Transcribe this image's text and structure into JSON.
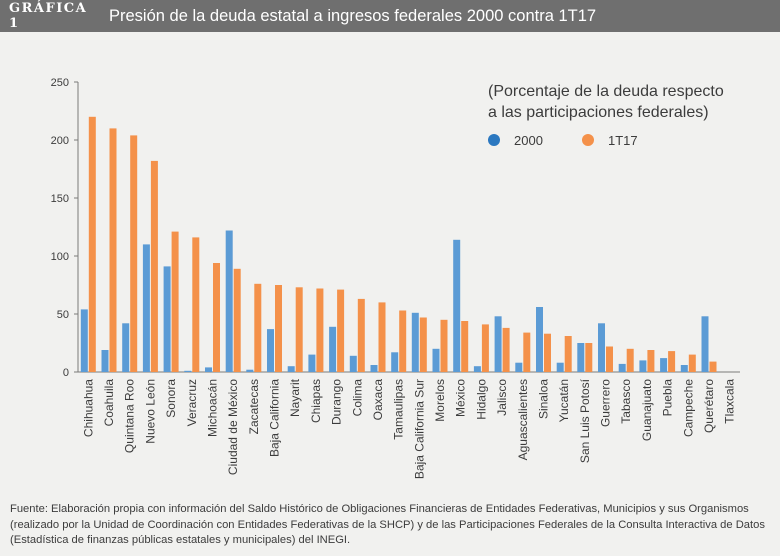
{
  "header": {
    "label": "GRÁFICA 1",
    "title": "Presión de la deuda estatal a ingresos federales 2000 contra 1T17"
  },
  "chart_data": {
    "type": "bar",
    "title": "",
    "xlabel": "",
    "ylabel": "",
    "ylim": [
      0,
      250
    ],
    "yticks": [
      0,
      50,
      100,
      150,
      200,
      250
    ],
    "grid": false,
    "legend_position": "top-right",
    "legend_title": [
      "(Porcentaje de la deuda respecto",
      "a las participaciones federales)"
    ],
    "categories": [
      "Chihuahua",
      "Coahuila",
      "Quintana Roo",
      "Nuevo León",
      "Sonora",
      "Veracruz",
      "Michoacán",
      "Ciudad de México",
      "Zacatecas",
      "Baja California",
      "Nayarit",
      "Chiapas",
      "Durango",
      "Colima",
      "Oaxaca",
      "Tamaulipas",
      "Baja California Sur",
      "Morelos",
      "México",
      "Hidalgo",
      "Jalisco",
      "Aguascalientes",
      "Sinaloa",
      "Yucatán",
      "San Luis Potosí",
      "Guerrero",
      "Tabasco",
      "Guanajuato",
      "Puebla",
      "Campeche",
      "Querétaro",
      "Tlaxcala"
    ],
    "series": [
      {
        "name": "2000",
        "color": "#5b9bd5",
        "legend_color": "#2b78c0",
        "values": [
          54,
          19,
          42,
          110,
          91,
          1,
          4,
          122,
          2,
          37,
          5,
          15,
          39,
          14,
          6,
          17,
          51,
          20,
          114,
          5,
          48,
          8,
          56,
          8,
          25,
          42,
          7,
          10,
          12,
          6,
          48,
          0
        ]
      },
      {
        "name": "1T17",
        "color": "#f4914a",
        "legend_color": "#f4914a",
        "values": [
          220,
          210,
          204,
          182,
          121,
          116,
          94,
          89,
          76,
          75,
          73,
          72,
          71,
          63,
          60,
          53,
          47,
          45,
          44,
          41,
          38,
          34,
          33,
          31,
          25,
          22,
          20,
          19,
          18,
          15,
          9,
          0
        ]
      }
    ]
  },
  "source_lines": [
    "Fuente: Elaboración propia con información del Saldo Histórico de Obligaciones Financieras de Entidades Federativas, Municipios y sus Organismos",
    "(realizado por la Unidad de Coordinación con Entidades Federativas de la SHCP) y de las Participaciones Federales de la Consulta Interactiva de Datos",
    "(Estadística de finanzas públicas estatales y municipales) del INEGI."
  ]
}
